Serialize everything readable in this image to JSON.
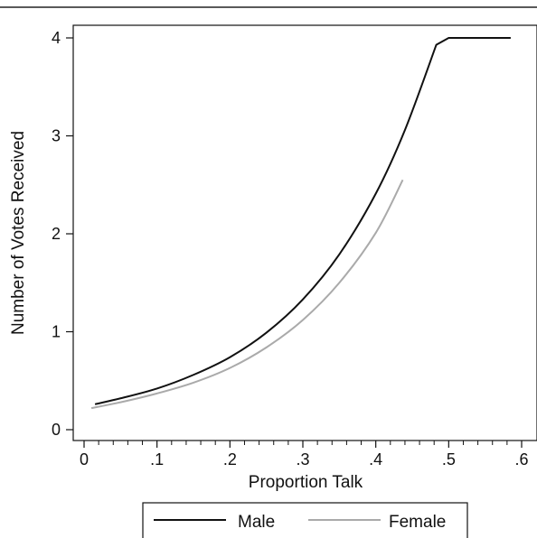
{
  "chart_data": {
    "type": "line",
    "xlabel": "Proportion Talk",
    "ylabel": "Number of Votes Received",
    "xlim": [
      0,
      0.6
    ],
    "ylim": [
      0,
      4
    ],
    "x_ticks": [
      {
        "value": 0,
        "label": "0"
      },
      {
        "value": 0.1,
        "label": ".1"
      },
      {
        "value": 0.2,
        "label": ".2"
      },
      {
        "value": 0.3,
        "label": ".3"
      },
      {
        "value": 0.4,
        "label": ".4"
      },
      {
        "value": 0.5,
        "label": ".5"
      },
      {
        "value": 0.6,
        "label": ".6"
      }
    ],
    "y_ticks": [
      {
        "value": 0,
        "label": "0"
      },
      {
        "value": 1,
        "label": "1"
      },
      {
        "value": 2,
        "label": "2"
      },
      {
        "value": 3,
        "label": "3"
      },
      {
        "value": 4,
        "label": "4"
      }
    ],
    "grid": false,
    "legend_position": "bottom",
    "series": [
      {
        "name": "Male",
        "color": "#111111",
        "x": [
          0.015,
          0.05,
          0.1,
          0.15,
          0.2,
          0.25,
          0.3,
          0.35,
          0.4,
          0.44,
          0.483,
          0.5,
          0.585
        ],
        "y": [
          0.26,
          0.32,
          0.42,
          0.56,
          0.74,
          0.99,
          1.33,
          1.79,
          2.41,
          3.06,
          3.93,
          4.0,
          4.0
        ]
      },
      {
        "name": "Female",
        "color": "#aaaaaa",
        "x": [
          0.01,
          0.05,
          0.1,
          0.15,
          0.2,
          0.25,
          0.3,
          0.35,
          0.4,
          0.437
        ],
        "y": [
          0.22,
          0.28,
          0.37,
          0.48,
          0.63,
          0.84,
          1.12,
          1.5,
          2.01,
          2.55
        ]
      }
    ]
  }
}
